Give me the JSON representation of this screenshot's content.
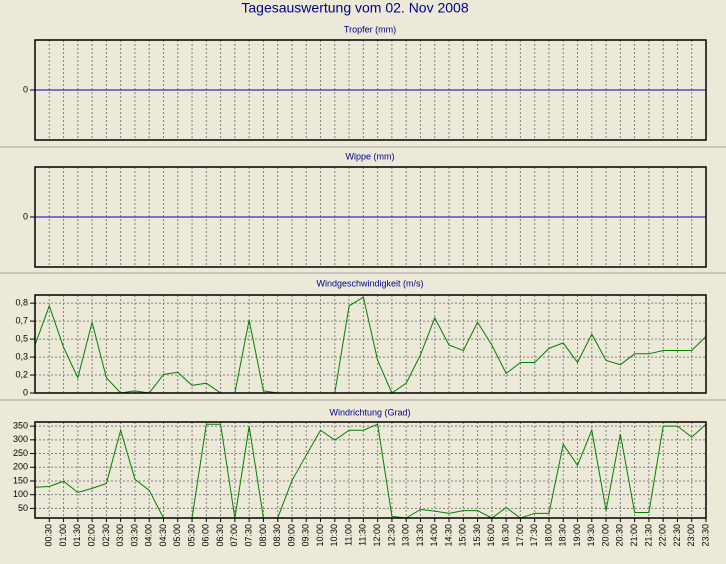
{
  "title": "Tagesauswertung vom 02. Nov 2008",
  "chart_data": [
    {
      "type": "line",
      "title": "Tropfer (mm)",
      "ylim": [
        -1,
        1
      ],
      "yticks": [
        0
      ],
      "grid": true,
      "series": [
        {
          "color": "#0000c0",
          "values": [
            0,
            0,
            0,
            0,
            0,
            0,
            0,
            0,
            0,
            0,
            0,
            0,
            0,
            0,
            0,
            0,
            0,
            0,
            0,
            0,
            0,
            0,
            0,
            0,
            0,
            0,
            0,
            0,
            0,
            0,
            0,
            0,
            0,
            0,
            0,
            0,
            0,
            0,
            0,
            0,
            0,
            0,
            0,
            0,
            0,
            0,
            0,
            0
          ]
        }
      ]
    },
    {
      "type": "line",
      "title": "Wippe (mm)",
      "ylim": [
        -1,
        1
      ],
      "yticks": [
        0
      ],
      "grid": true,
      "series": [
        {
          "color": "#0000c0",
          "values": [
            0,
            0,
            0,
            0,
            0,
            0,
            0,
            0,
            0,
            0,
            0,
            0,
            0,
            0,
            0,
            0,
            0,
            0,
            0,
            0,
            0,
            0,
            0,
            0,
            0,
            0,
            0,
            0,
            0,
            0,
            0,
            0,
            0,
            0,
            0,
            0,
            0,
            0,
            0,
            0,
            0,
            0,
            0,
            0,
            0,
            0,
            0,
            0
          ]
        }
      ]
    },
    {
      "type": "line",
      "title": "Windgeschwindigkeit (m/s)",
      "ylim": [
        0,
        0.9
      ],
      "yticks": [
        0,
        {
          "value": 0.165,
          "label": "0,2"
        },
        {
          "value": 0.33,
          "label": "0,3"
        },
        {
          "value": 0.495,
          "label": "0,5"
        },
        {
          "value": 0.66,
          "label": "0,7"
        },
        {
          "value": 0.825,
          "label": "0,8"
        }
      ],
      "grid": true,
      "series": [
        {
          "color": "#008000",
          "values": [
            0.44,
            0.8,
            0.42,
            0.14,
            0.65,
            0.14,
            0,
            0.02,
            0,
            0.17,
            0.19,
            0.07,
            0.09,
            0,
            0,
            0.67,
            0.02,
            0,
            0,
            0,
            0,
            0,
            0.8,
            0.88,
            0.3,
            0,
            0.09,
            0.35,
            0.69,
            0.44,
            0.39,
            0.65,
            0.44,
            0.18,
            0.28,
            0.28,
            0.41,
            0.46,
            0.28,
            0.54,
            0.3,
            0.26,
            0.36,
            0.36,
            0.39,
            0.39,
            0.39,
            0.52
          ]
        }
      ]
    },
    {
      "type": "line",
      "title": "Windrichtung (Grad)",
      "ylim": [
        15,
        365
      ],
      "yticks": [
        50,
        100,
        150,
        200,
        250,
        300,
        350
      ],
      "grid": true,
      "categories": [
        null,
        "00:30",
        "01:00",
        "01:30",
        "02:00",
        "02:30",
        "03:00",
        "03:30",
        "04:00",
        "04:30",
        "05:00",
        "05:30",
        "06:00",
        "06:30",
        "07:00",
        "07:30",
        "08:00",
        "08:30",
        "09:00",
        "09:30",
        "10:00",
        "10:30",
        "11:00",
        "11:30",
        "12:00",
        "12:30",
        "13:00",
        "13:30",
        "14:00",
        "14:30",
        "15:00",
        "15:30",
        "16:00",
        "16:30",
        "17:00",
        "17:30",
        "18:00",
        "18:30",
        "19:00",
        "19:30",
        "20:00",
        "20:30",
        "21:00",
        "21:30",
        "22:00",
        "22:30",
        "23:00",
        "23:30"
      ],
      "series": [
        {
          "color": "#008000",
          "values": [
            127,
            130,
            149,
            108,
            123,
            141,
            335,
            156,
            116,
            15,
            15,
            15,
            357,
            357,
            15,
            350,
            15,
            15,
            152,
            244,
            335,
            299,
            335,
            335,
            357,
            21,
            15,
            46,
            40,
            32,
            42,
            42,
            15,
            53,
            15,
            32,
            32,
            284,
            207,
            335,
            42,
            321,
            35,
            35,
            350,
            350,
            310,
            357
          ]
        }
      ]
    }
  ]
}
